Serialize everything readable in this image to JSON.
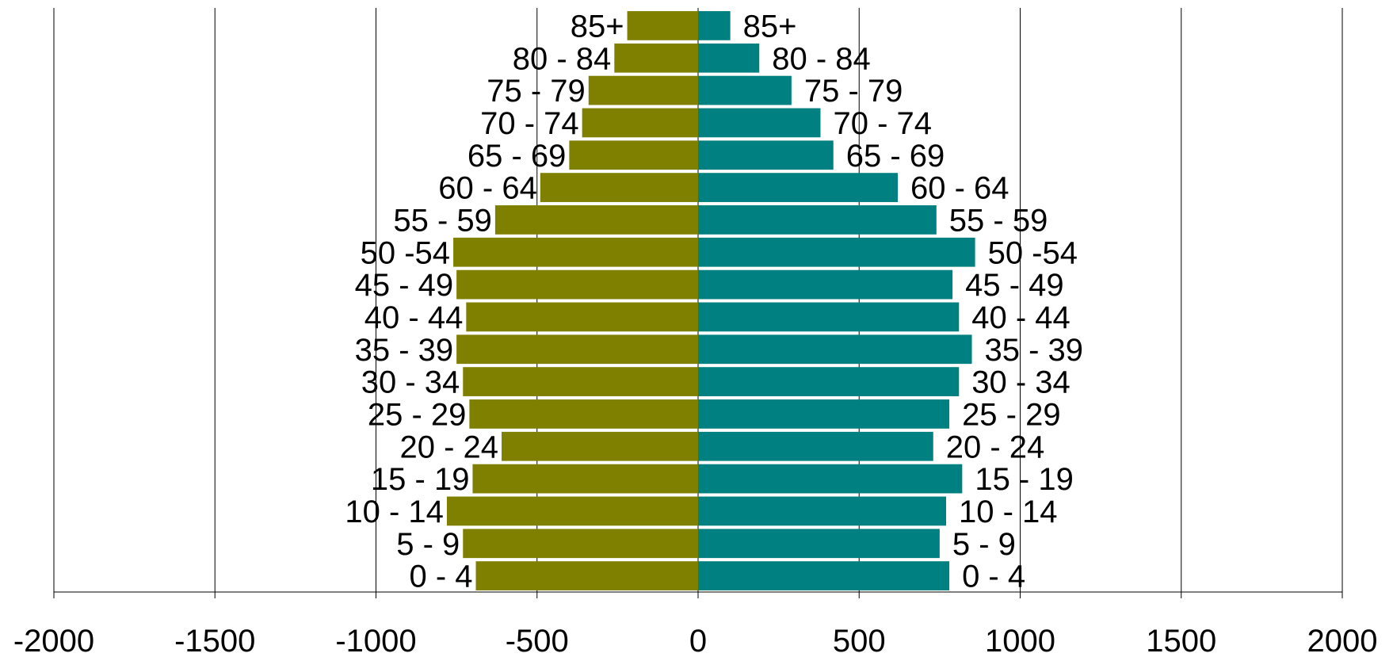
{
  "chart_data": {
    "type": "bar",
    "orientation": "horizontal",
    "categories": [
      "0 - 4",
      "5 - 9",
      "10 - 14",
      "15 - 19",
      "20 - 24",
      "25 - 29",
      "30 - 34",
      "35 - 39",
      "40 - 44",
      "45 - 49",
      "50 -54",
      "55 - 59",
      "60 - 64",
      "65 - 69",
      "70 - 74",
      "75 - 79",
      "80 - 84",
      "85+"
    ],
    "series": [
      {
        "color": "#808000",
        "values": [
          -690,
          -730,
          -780,
          -700,
          -610,
          -710,
          -730,
          -750,
          -720,
          -750,
          -760,
          -630,
          -490,
          -400,
          -360,
          -340,
          -260,
          -220
        ]
      },
      {
        "color": "#008080",
        "values": [
          780,
          750,
          770,
          820,
          730,
          780,
          810,
          850,
          810,
          790,
          860,
          740,
          620,
          420,
          380,
          290,
          190,
          100
        ]
      }
    ],
    "xlim": [
      -2000,
      2000
    ],
    "xticks": [
      "-2000",
      "-1500",
      "-1000",
      "-500",
      "0",
      "500",
      "1000",
      "1500",
      "2000"
    ],
    "grid": true,
    "legend": "none",
    "title": "",
    "xlabel": "",
    "ylabel": ""
  }
}
